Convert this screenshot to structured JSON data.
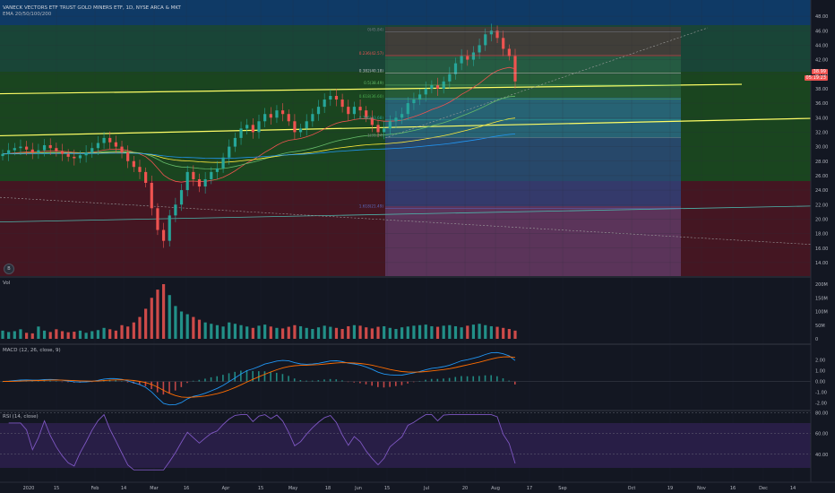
{
  "header": {
    "title": "VANECK VECTORS ETF TRUST GOLD MINERS ETF, 1D, NYSE ARCA & MKT",
    "ema_label": "EMA 20/50/100/200"
  },
  "badge": "B",
  "price_tags": [
    {
      "text": "38.99",
      "color": "#ef5350"
    },
    {
      "text": "05:19:23",
      "color": "#ef5350"
    }
  ],
  "panes": {
    "volume_label": "Vol",
    "macd_label": "MACD (12, 26, close, 9)",
    "rsi_label": "RSI (14, close)"
  },
  "fib_labels": [
    {
      "text": "0(45.84)",
      "color": "#787b86"
    },
    {
      "text": "0.236(42.57)",
      "color": "#ef5350"
    },
    {
      "text": "0.382(40.18)",
      "color": "#c0c0c0"
    },
    {
      "text": "0.5(38.49)",
      "color": "#66bb6a"
    },
    {
      "text": "0.618(36.60)",
      "color": "#4caf50"
    },
    {
      "text": "0.786(33.68)",
      "color": "#26a69a"
    },
    {
      "text": "1(31.24)",
      "color": "#787b86"
    },
    {
      "text": "1.618(21.49)",
      "color": "#5c6bc0"
    }
  ],
  "colors": {
    "up": "#26a69a",
    "down": "#ef5350",
    "background": "#131722"
  },
  "chart_data": [
    {
      "type": "candlestick",
      "title": "VANECK VECTORS ETF TRUST GOLD MINERS ETF, 1D, NYSE ARCA & MKT",
      "x_tick_labels": [
        "2020",
        "15",
        "Feb",
        "14",
        "Mar",
        "16",
        "Apr",
        "15",
        "May",
        "18",
        "Jun",
        "15",
        "Jul",
        "20",
        "Aug",
        "17",
        "Sep",
        "Oct",
        "19",
        "Nov",
        "16",
        "Dec",
        "14"
      ],
      "y_tick_labels": [
        "14.00",
        "16.00",
        "18.00",
        "20.00",
        "22.00",
        "24.00",
        "26.00",
        "28.00",
        "30.00",
        "32.00",
        "34.00",
        "36.00",
        "38.00",
        "40.00",
        "42.00",
        "44.00",
        "46.00",
        "48.00"
      ],
      "ylim": [
        13,
        49
      ],
      "close_path": [
        29.0,
        29.5,
        29.8,
        30.0,
        29.6,
        29.2,
        29.5,
        30.2,
        29.8,
        29.4,
        29.0,
        28.6,
        28.4,
        28.8,
        29.2,
        29.8,
        30.5,
        31.2,
        30.6,
        30.0,
        29.2,
        28.0,
        27.2,
        26.5,
        25.0,
        21.5,
        18.5,
        17.0,
        20.5,
        22.0,
        24.0,
        26.5,
        25.5,
        24.5,
        25.5,
        26.5,
        27.0,
        28.5,
        30.0,
        31.2,
        32.5,
        33.0,
        32.0,
        33.5,
        34.5,
        34.0,
        35.0,
        34.5,
        33.5,
        32.0,
        32.5,
        33.5,
        34.5,
        35.5,
        36.5,
        37.0,
        36.5,
        35.5,
        34.5,
        35.5,
        35.0,
        34.0,
        33.0,
        32.0,
        32.5,
        33.5,
        34.0,
        34.5,
        36.0,
        36.5,
        37.2,
        38.0,
        38.5,
        38.0,
        39.0,
        40.0,
        41.5,
        42.5,
        42.0,
        43.0,
        44.0,
        45.5,
        46.0,
        45.0,
        43.5,
        42.5,
        39.0
      ],
      "y_label": "",
      "x_label": ""
    },
    {
      "type": "bar",
      "title": "Vol",
      "y_tick_labels": [
        "200M",
        "150M",
        "100M",
        "50M",
        "0"
      ],
      "ylim": [
        0,
        200
      ],
      "values": [
        30,
        25,
        28,
        35,
        22,
        20,
        45,
        30,
        25,
        35,
        28,
        24,
        26,
        30,
        22,
        28,
        32,
        40,
        35,
        30,
        50,
        45,
        60,
        80,
        110,
        150,
        180,
        200,
        160,
        120,
        100,
        90,
        80,
        70,
        60,
        55,
        50,
        45,
        60,
        55,
        50,
        45,
        40,
        48,
        52,
        45,
        40,
        38,
        44,
        50,
        46,
        40,
        36,
        42,
        48,
        44,
        40,
        36,
        46,
        50,
        48,
        42,
        38,
        44,
        46,
        40,
        36,
        42,
        45,
        48,
        50,
        52,
        46,
        44,
        48,
        50,
        46,
        42,
        48,
        52,
        55,
        50,
        46,
        44,
        40,
        36,
        30
      ]
    },
    {
      "type": "line",
      "title": "MACD (12, 26, close, 9)",
      "y_tick_labels": [
        "2.00",
        "1.00",
        "0.00",
        "-1.00",
        "-2.00"
      ],
      "ylim": [
        -2.2,
        2.8
      ]
    },
    {
      "type": "line",
      "title": "RSI (14, close)",
      "y_tick_labels": [
        "80.00",
        "60.00",
        "40.00"
      ],
      "ylim": [
        20,
        82
      ]
    }
  ]
}
